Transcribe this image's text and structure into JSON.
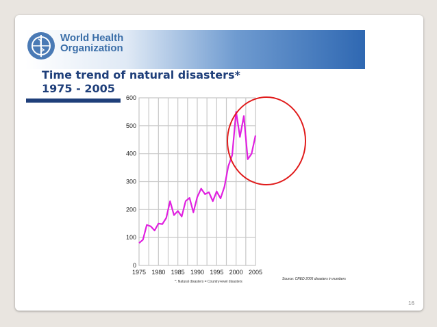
{
  "slide": {
    "org_name_line1": "World Health",
    "org_name_line2": "Organization",
    "title_line1": "Time trend of natural disasters*",
    "title_line2": "1975 - 2005",
    "footnote": "*: Natural disasters = Country-level disasters",
    "source": "Source: CRED 2005 disasters in numbers",
    "page_number": "16"
  },
  "colors": {
    "series": "#e020e0",
    "highlight_circle": "#e01a1a",
    "title": "#1f3f7a",
    "banner": "#2f68b2"
  },
  "chart_data": {
    "type": "line",
    "title": "",
    "xlabel": "",
    "ylabel": "",
    "xlim": [
      1975,
      2005
    ],
    "ylim": [
      0,
      600
    ],
    "xticks": [
      "1975",
      "1980",
      "1985",
      "1990",
      "1995",
      "2000",
      "2005"
    ],
    "yticks": [
      "0",
      "100",
      "200",
      "300",
      "400",
      "500",
      "600"
    ],
    "grid": true,
    "series": [
      {
        "x": [
          1975,
          1976,
          1977,
          1978,
          1979,
          1980,
          1981,
          1982,
          1983,
          1984,
          1985,
          1986,
          1987,
          1988,
          1989,
          1990,
          1991,
          1992,
          1993,
          1994,
          1995,
          1996,
          1997,
          1998,
          1999,
          2000,
          2001,
          2002,
          2003,
          2004,
          2005
        ],
        "values": [
          80,
          92,
          145,
          140,
          125,
          150,
          148,
          170,
          230,
          180,
          195,
          175,
          230,
          242,
          190,
          245,
          275,
          255,
          262,
          230,
          265,
          240,
          282,
          355,
          395,
          550,
          460,
          535,
          380,
          400,
          465
        ]
      }
    ],
    "annotation": "circle highlighting 2000-2005"
  }
}
